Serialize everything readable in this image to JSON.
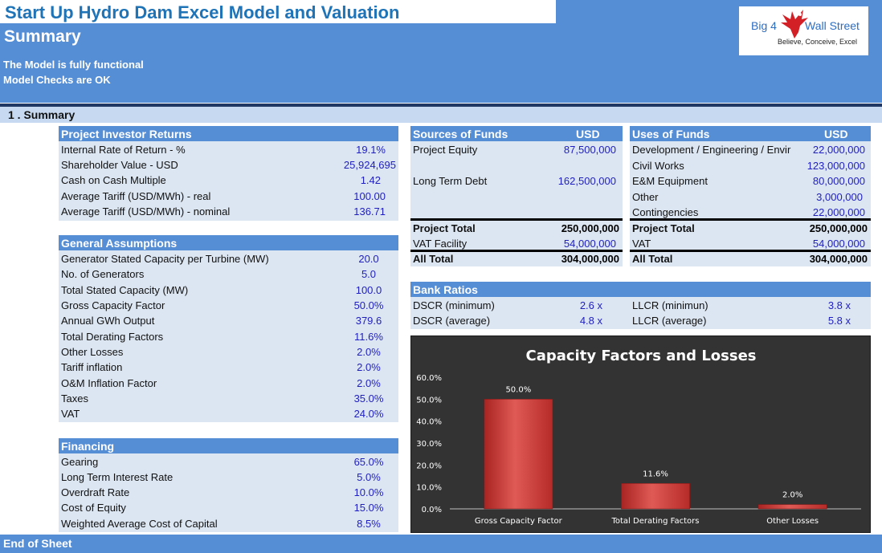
{
  "header": {
    "title": "Start Up Hydro Dam Excel Model and Valuation",
    "subtitle": "Summary",
    "status_1": "The Model is fully functional",
    "status_2": "Model Checks are OK",
    "logo": {
      "big4": "Big 4",
      "wall_street": "Wall Street",
      "tagline": "Believe, Conceive, Excel"
    }
  },
  "section": {
    "label": "1 . Summary"
  },
  "investor_returns": {
    "header": "Project Investor Returns",
    "rows": [
      {
        "label": "Internal Rate of Return - %",
        "value": "19.1%"
      },
      {
        "label": "Shareholder Value - USD",
        "value": "25,924,695"
      },
      {
        "label": "Cash on Cash Multiple",
        "value": "1.42"
      },
      {
        "label": "Average Tariff (USD/MWh) - real",
        "value": "100.00"
      },
      {
        "label": "Average Tariff (USD/MWh) - nominal",
        "value": "136.71"
      }
    ]
  },
  "general_assumptions": {
    "header": "General Assumptions",
    "rows": [
      {
        "label": "Generator Stated Capacity per Turbine (MW)",
        "value": "20.0"
      },
      {
        "label": "No. of Generators",
        "value": "5.0"
      },
      {
        "label": "Total Stated Capacity (MW)",
        "value": "100.0"
      },
      {
        "label": "Gross Capacity Factor",
        "value": "50.0%"
      },
      {
        "label": "Annual GWh Output",
        "value": "379.6"
      },
      {
        "label": "Total Derating Factors",
        "value": "11.6%"
      },
      {
        "label": "Other Losses",
        "value": "2.0%"
      },
      {
        "label": "Tariff inflation",
        "value": "2.0%"
      },
      {
        "label": "O&M Inflation Factor",
        "value": "2.0%"
      },
      {
        "label": "Taxes",
        "value": "35.0%"
      },
      {
        "label": "VAT",
        "value": "24.0%"
      }
    ]
  },
  "financing": {
    "header": "Financing",
    "rows": [
      {
        "label": "Gearing",
        "value": "65.0%"
      },
      {
        "label": "Long Term Interest Rate",
        "value": "5.0%"
      },
      {
        "label": "Overdraft Rate",
        "value": "10.0%"
      },
      {
        "label": "Cost of Equity",
        "value": "15.0%"
      },
      {
        "label": "Weighted Average Cost of Capital",
        "value": "8.5%"
      }
    ]
  },
  "sources": {
    "header": "Sources of Funds",
    "unit": "USD",
    "rows": [
      {
        "label": "Project Equity",
        "value": "87,500,000"
      },
      {
        "label": "Long Term Debt",
        "value": "162,500,000"
      }
    ],
    "project_total": {
      "label": "Project Total",
      "value": "250,000,000"
    },
    "vat_facility": {
      "label": "VAT Facility",
      "value": "54,000,000"
    },
    "all_total": {
      "label": "All Total",
      "value": "304,000,000"
    }
  },
  "uses": {
    "header": "Uses of Funds",
    "unit": "USD",
    "rows": [
      {
        "label": "Development / Engineering / Envir",
        "value": "22,000,000"
      },
      {
        "label": "Civil Works",
        "value": "123,000,000"
      },
      {
        "label": "E&M Equipment",
        "value": "80,000,000"
      },
      {
        "label": "Other",
        "value": "3,000,000"
      },
      {
        "label": "Contingencies",
        "value": "22,000,000"
      }
    ],
    "project_total": {
      "label": "Project Total",
      "value": "250,000,000"
    },
    "vat": {
      "label": "VAT",
      "value": "54,000,000"
    },
    "all_total": {
      "label": "All Total",
      "value": "304,000,000"
    }
  },
  "bank_ratios": {
    "header": "Bank Ratios",
    "rows": [
      {
        "label": "DSCR (minimum)",
        "value": "2.6 x",
        "label2": "LLCR (minimun)",
        "value2": "3.8 x"
      },
      {
        "label": "DSCR (average)",
        "value": "4.8 x",
        "label2": "LLCR (average)",
        "value2": "5.8 x"
      }
    ]
  },
  "chart_data": {
    "type": "bar",
    "title": "Capacity Factors and Losses",
    "categories": [
      "Gross Capacity Factor",
      "Total Derating Factors",
      "Other Losses"
    ],
    "values": [
      50.0,
      11.6,
      2.0
    ],
    "data_labels": [
      "50.0%",
      "11.6%",
      "2.0%"
    ],
    "yticks": [
      "0.0%",
      "10.0%",
      "20.0%",
      "30.0%",
      "40.0%",
      "50.0%",
      "60.0%"
    ],
    "ylim": [
      0,
      60
    ],
    "grid": false,
    "legend": "none",
    "colors": {
      "bar": "#c0302e",
      "bar_light": "#e05a55",
      "background": "#333333",
      "text": "#ffffff"
    }
  },
  "footer": {
    "label": "End of Sheet"
  },
  "colors": {
    "header_blue": "#558ed5",
    "panel": "#dce6f2",
    "title_blue": "#1f73b7",
    "value_blue": "#1f1fbf"
  }
}
